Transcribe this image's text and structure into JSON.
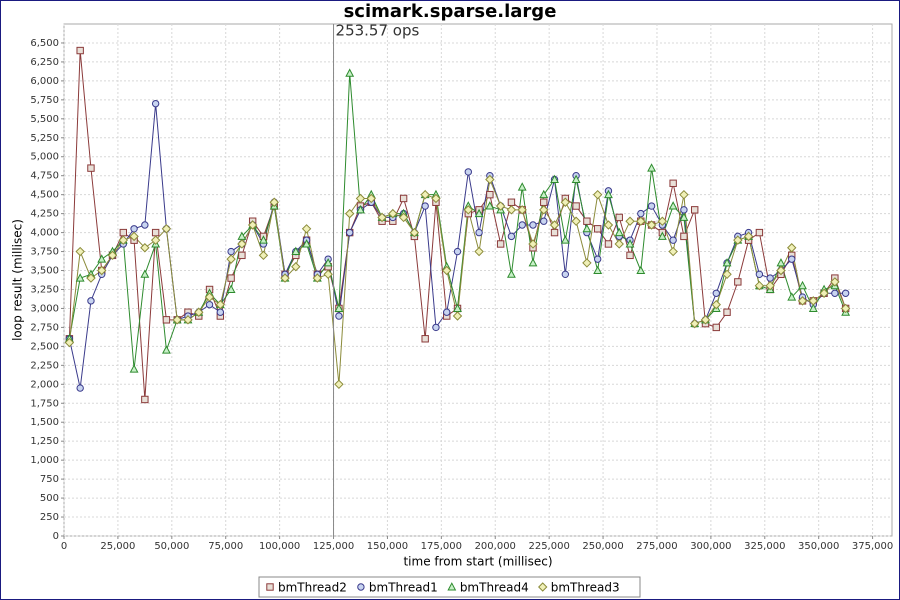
{
  "chart_data": {
    "type": "line",
    "title": "scimark.sparse.large",
    "x_label": "time from start (millisec)",
    "y_label": "loop result (millisec)",
    "annotation": {
      "x": 125000,
      "label": "253.57 ops"
    },
    "grid": true,
    "legend": "bottom",
    "xlim": [
      0,
      384000
    ],
    "ylim": [
      0,
      6750
    ],
    "xticks": [
      {
        "value": 0,
        "label": "0"
      },
      {
        "value": 25000,
        "label": "25,000"
      },
      {
        "value": 50000,
        "label": "50,000"
      },
      {
        "value": 75000,
        "label": "75,000"
      },
      {
        "value": 100000,
        "label": "100,000"
      },
      {
        "value": 125000,
        "label": "125,000"
      },
      {
        "value": 150000,
        "label": "150,000"
      },
      {
        "value": 175000,
        "label": "175,000"
      },
      {
        "value": 200000,
        "label": "200,000"
      },
      {
        "value": 225000,
        "label": "225,000"
      },
      {
        "value": 250000,
        "label": "250,000"
      },
      {
        "value": 275000,
        "label": "275,000"
      },
      {
        "value": 300000,
        "label": "300,000"
      },
      {
        "value": 325000,
        "label": "325,000"
      },
      {
        "value": 350000,
        "label": "350,000"
      },
      {
        "value": 375000,
        "label": "375,000"
      }
    ],
    "yticks": [
      {
        "value": 0,
        "label": "0"
      },
      {
        "value": 250,
        "label": "250"
      },
      {
        "value": 500,
        "label": "500"
      },
      {
        "value": 750,
        "label": "750"
      },
      {
        "value": 1000,
        "label": "1,000"
      },
      {
        "value": 1250,
        "label": "1,250"
      },
      {
        "value": 1500,
        "label": "1,500"
      },
      {
        "value": 1750,
        "label": "1,750"
      },
      {
        "value": 2000,
        "label": "2,000"
      },
      {
        "value": 2250,
        "label": "2,250"
      },
      {
        "value": 2500,
        "label": "2,500"
      },
      {
        "value": 2750,
        "label": "2,750"
      },
      {
        "value": 3000,
        "label": "3,000"
      },
      {
        "value": 3250,
        "label": "3,250"
      },
      {
        "value": 3500,
        "label": "3,500"
      },
      {
        "value": 3750,
        "label": "3,750"
      },
      {
        "value": 4000,
        "label": "4,000"
      },
      {
        "value": 4250,
        "label": "4,250"
      },
      {
        "value": 4500,
        "label": "4,500"
      },
      {
        "value": 4750,
        "label": "4,750"
      },
      {
        "value": 5000,
        "label": "5,000"
      },
      {
        "value": 5250,
        "label": "5,250"
      },
      {
        "value": 5500,
        "label": "5,500"
      },
      {
        "value": 5750,
        "label": "5,750"
      },
      {
        "value": 6000,
        "label": "6,000"
      },
      {
        "value": 6250,
        "label": "6,250"
      },
      {
        "value": 6500,
        "label": "6,500"
      }
    ],
    "x": [
      2500,
      7500,
      12500,
      17500,
      22500,
      27500,
      32500,
      37500,
      42500,
      47500,
      52500,
      57500,
      62500,
      67500,
      72500,
      77500,
      82500,
      87500,
      92500,
      97500,
      102500,
      107500,
      112500,
      117500,
      122500,
      127500,
      132500,
      137500,
      142500,
      147500,
      152500,
      157500,
      162500,
      167500,
      172500,
      177500,
      182500,
      187500,
      192500,
      197500,
      202500,
      207500,
      212500,
      217500,
      222500,
      227500,
      232500,
      237500,
      242500,
      247500,
      252500,
      257500,
      262500,
      267500,
      272500,
      277500,
      282500,
      287500,
      292500,
      297500,
      302500,
      307500,
      312500,
      317500,
      322500,
      327500,
      332500,
      337500,
      342500,
      347500,
      352500,
      357500,
      362500
    ],
    "series": [
      {
        "name": "bmThread2",
        "color": "#8b3a3a",
        "marker": "square",
        "fill": "#e8e0d8",
        "values": [
          2600,
          6400,
          4850,
          3500,
          3700,
          4000,
          3900,
          1800,
          4000,
          2850,
          2850,
          2950,
          2900,
          3250,
          2900,
          3400,
          3700,
          4150,
          3950,
          4350,
          3450,
          3700,
          3900,
          3450,
          3550,
          3000,
          4000,
          4350,
          4400,
          4150,
          4150,
          4450,
          3950,
          2600,
          4400,
          2900,
          3000,
          4250,
          4300,
          4500,
          3850,
          4400,
          4300,
          3800,
          4400,
          4000,
          4450,
          4350,
          4150,
          4050,
          3850,
          4200,
          3700,
          4150,
          4100,
          4000,
          4650,
          3950,
          4300,
          2800,
          2750,
          2950,
          3350,
          3900,
          4000,
          3250,
          3450,
          3700,
          3100,
          3100,
          3200,
          3400,
          3000
        ]
      },
      {
        "name": "bmThread1",
        "color": "#3a3a8b",
        "marker": "circle",
        "fill": "#c8d4f0",
        "values": [
          2600,
          1950,
          3100,
          3450,
          3700,
          3850,
          4050,
          4100,
          5700,
          4050,
          2850,
          2900,
          2950,
          3050,
          2950,
          3750,
          3850,
          4100,
          3850,
          4400,
          3450,
          3750,
          3900,
          3450,
          3650,
          2900,
          4000,
          4300,
          4400,
          4200,
          4200,
          4250,
          4000,
          4350,
          2750,
          2950,
          3750,
          4800,
          4000,
          4750,
          4350,
          3950,
          4100,
          4100,
          4150,
          4700,
          3450,
          4750,
          4000,
          3650,
          4550,
          3950,
          3900,
          4250,
          4350,
          4100,
          3900,
          4300,
          2800,
          2850,
          3200,
          3600,
          3950,
          4000,
          3450,
          3400,
          3500,
          3650,
          3150,
          3050,
          3200,
          3200,
          3200
        ]
      },
      {
        "name": "bmThread4",
        "color": "#2e8b2e",
        "marker": "triangle",
        "fill": "#c8f0c8",
        "values": [
          2600,
          3400,
          3450,
          3650,
          3750,
          3900,
          2200,
          3450,
          3850,
          2450,
          2850,
          2850,
          2950,
          3200,
          3050,
          3250,
          3950,
          4100,
          3900,
          4350,
          3400,
          3750,
          3850,
          3400,
          3600,
          3000,
          6100,
          4300,
          4500,
          4200,
          4250,
          4250,
          4000,
          4500,
          4500,
          3550,
          3000,
          4350,
          4250,
          4350,
          4300,
          3450,
          4600,
          3600,
          4500,
          4700,
          3900,
          4700,
          4050,
          3500,
          4500,
          4000,
          3850,
          3500,
          4850,
          3950,
          4350,
          4200,
          2800,
          2850,
          3000,
          3600,
          3900,
          3950,
          3300,
          3250,
          3600,
          3150,
          3300,
          3000,
          3250,
          3300,
          2950
        ]
      },
      {
        "name": "bmThread3",
        "color": "#8b8b3a",
        "marker": "diamond",
        "fill": "#f0f0b8",
        "values": [
          2550,
          3750,
          3400,
          3500,
          3700,
          3900,
          3950,
          3800,
          3900,
          4050,
          2850,
          2850,
          2950,
          3150,
          3050,
          3650,
          3850,
          4100,
          3700,
          4400,
          3400,
          3550,
          4050,
          3400,
          3450,
          2000,
          4250,
          4450,
          4450,
          4200,
          4250,
          4200,
          4000,
          4500,
          4450,
          3500,
          2900,
          4300,
          3750,
          4700,
          4350,
          4300,
          4300,
          3850,
          4300,
          4100,
          4400,
          4150,
          3600,
          4500,
          4100,
          3850,
          4150,
          4150,
          4100,
          4150,
          3750,
          4500,
          2800,
          2850,
          3050,
          3450,
          3900,
          3950,
          3300,
          3300,
          3500,
          3800,
          3100,
          3100,
          3200,
          3350,
          3000
        ]
      }
    ]
  }
}
